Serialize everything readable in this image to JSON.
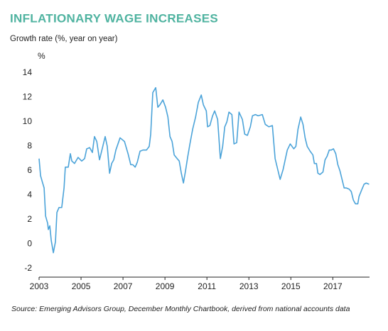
{
  "chart_data": {
    "type": "line",
    "title": "INFLATIONARY WAGE INCREASES",
    "subtitle": "Growth rate (%, year on year)",
    "y_unit": "%",
    "source": "Source: Emerging Advisors Group, December Monthly Chartbook, derived from national accounts data",
    "xlim": [
      2003,
      2018.75
    ],
    "xticks": [
      2003,
      2005,
      2007,
      2009,
      2011,
      2013,
      2015,
      2017
    ],
    "ylim": [
      -2,
      14
    ],
    "yticks": [
      -2,
      0,
      2,
      4,
      6,
      8,
      10,
      12,
      14
    ],
    "grid": false,
    "series": [
      {
        "color": "#4ba3d9",
        "x": [
          2003.0,
          2003.07,
          2003.17,
          2003.24,
          2003.31,
          2003.41,
          2003.44,
          2003.51,
          2003.58,
          2003.68,
          2003.78,
          2003.85,
          2003.95,
          2004.08,
          2004.19,
          2004.25,
          2004.39,
          2004.49,
          2004.56,
          2004.69,
          2004.86,
          2005.03,
          2005.17,
          2005.27,
          2005.41,
          2005.54,
          2005.64,
          2005.75,
          2005.88,
          2005.98,
          2006.15,
          2006.25,
          2006.36,
          2006.46,
          2006.56,
          2006.66,
          2006.86,
          2007.07,
          2007.24,
          2007.37,
          2007.47,
          2007.58,
          2007.68,
          2007.81,
          2007.95,
          2008.12,
          2008.25,
          2008.32,
          2008.42,
          2008.56,
          2008.66,
          2008.76,
          2008.9,
          2009.03,
          2009.14,
          2009.24,
          2009.34,
          2009.44,
          2009.58,
          2009.68,
          2009.78,
          2009.88,
          2009.98,
          2010.08,
          2010.19,
          2010.32,
          2010.46,
          2010.59,
          2010.73,
          2010.83,
          2010.97,
          2011.03,
          2011.14,
          2011.27,
          2011.37,
          2011.51,
          2011.64,
          2011.75,
          2011.85,
          2011.95,
          2012.05,
          2012.19,
          2012.29,
          2012.42,
          2012.53,
          2012.69,
          2012.8,
          2012.93,
          2013.07,
          2013.17,
          2013.31,
          2013.44,
          2013.64,
          2013.78,
          2013.95,
          2014.12,
          2014.25,
          2014.39,
          2014.49,
          2014.63,
          2014.73,
          2014.83,
          2014.97,
          2015.14,
          2015.24,
          2015.34,
          2015.47,
          2015.58,
          2015.68,
          2015.78,
          2015.92,
          2016.05,
          2016.12,
          2016.22,
          2016.29,
          2016.39,
          2016.53,
          2016.63,
          2016.73,
          2016.83,
          2016.93,
          2017.03,
          2017.14,
          2017.24,
          2017.34,
          2017.44,
          2017.54,
          2017.64,
          2017.78,
          2017.88,
          2017.98,
          2018.08,
          2018.19,
          2018.25,
          2018.39,
          2018.49,
          2018.59,
          2018.73
        ],
        "values": [
          7.0,
          5.6,
          5.0,
          4.6,
          2.3,
          1.7,
          1.2,
          1.5,
          0.3,
          -0.7,
          0.2,
          2.6,
          3.0,
          3.0,
          4.6,
          6.3,
          6.3,
          7.4,
          6.8,
          6.6,
          7.1,
          6.8,
          7.0,
          7.8,
          7.9,
          7.5,
          8.8,
          8.4,
          6.9,
          7.6,
          8.8,
          8.0,
          5.8,
          6.6,
          6.9,
          7.7,
          8.7,
          8.4,
          7.4,
          6.5,
          6.5,
          6.3,
          6.7,
          7.6,
          7.7,
          7.7,
          8.0,
          9.0,
          12.4,
          12.8,
          11.2,
          11.4,
          11.8,
          11.2,
          10.4,
          8.8,
          8.4,
          7.3,
          7.0,
          6.8,
          5.8,
          5.0,
          6.0,
          7.1,
          8.2,
          9.4,
          10.4,
          11.6,
          12.2,
          11.4,
          10.9,
          9.6,
          9.7,
          10.5,
          10.9,
          10.2,
          7.0,
          8.0,
          9.6,
          10.0,
          10.8,
          10.6,
          8.2,
          8.3,
          10.8,
          10.2,
          9.0,
          8.9,
          9.6,
          10.5,
          10.6,
          10.5,
          10.6,
          9.8,
          9.6,
          9.7,
          7.0,
          6.0,
          5.3,
          6.1,
          6.9,
          7.7,
          8.2,
          7.8,
          8.0,
          9.4,
          10.4,
          9.8,
          8.7,
          8.0,
          7.6,
          7.3,
          6.6,
          6.6,
          5.8,
          5.7,
          5.9,
          6.9,
          7.2,
          7.7,
          7.7,
          7.8,
          7.4,
          6.5,
          6.0,
          5.3,
          4.6,
          4.6,
          4.5,
          4.3,
          3.6,
          3.3,
          3.3,
          3.9,
          4.5,
          4.9,
          5.0,
          4.9
        ]
      }
    ]
  }
}
